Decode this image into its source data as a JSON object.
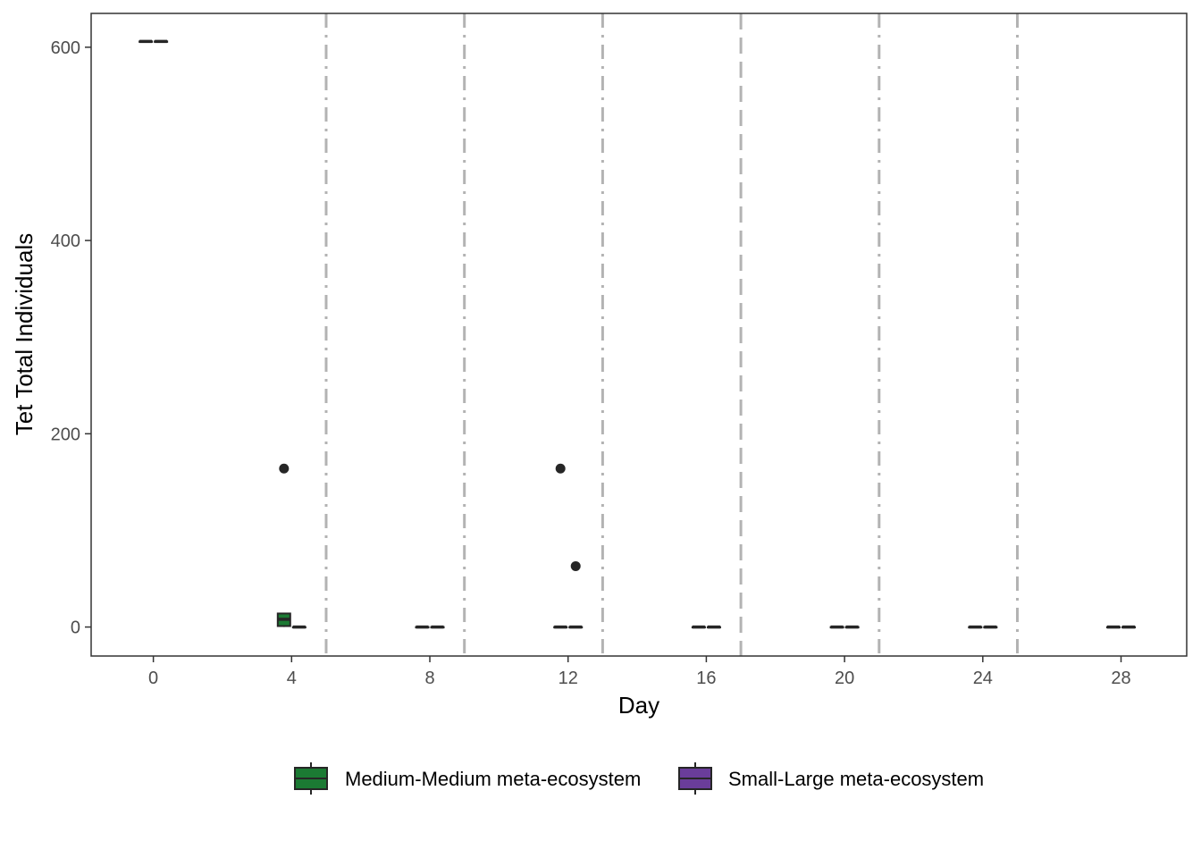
{
  "chart_data": {
    "type": "boxplot",
    "xlabel": "Day",
    "ylabel": "Tet Total Individuals",
    "xlim": [
      -1.8,
      29.9
    ],
    "ylim": [
      -30,
      635
    ],
    "x_ticks": [
      0,
      4,
      8,
      12,
      16,
      20,
      24,
      28
    ],
    "y_ticks": [
      0,
      200,
      400,
      600
    ],
    "grid": false,
    "reference_lines": [
      {
        "x": 5,
        "style": "dash-dot",
        "color": "#b3b3b3"
      },
      {
        "x": 9,
        "style": "dash-dot",
        "color": "#b3b3b3"
      },
      {
        "x": 13,
        "style": "dash-dot",
        "color": "#b3b3b3"
      },
      {
        "x": 17,
        "style": "dashed",
        "color": "#b3b3b3"
      },
      {
        "x": 21,
        "style": "dash-dot",
        "color": "#b3b3b3"
      },
      {
        "x": 25,
        "style": "dash-dot",
        "color": "#b3b3b3"
      }
    ],
    "legend": {
      "position": "bottom"
    },
    "series": [
      {
        "name": "Medium-Medium meta-ecosystem",
        "color": "#1b7a33",
        "boxes": [
          {
            "day": 0,
            "x": -0.22,
            "min": 606,
            "q1": 606,
            "median": 606,
            "q3": 606,
            "max": 606,
            "outliers": []
          },
          {
            "day": 4,
            "x": 3.78,
            "min": 0,
            "q1": 1,
            "median": 8,
            "q3": 14,
            "max": 14,
            "outliers": [
              164
            ]
          },
          {
            "day": 8,
            "x": 7.78,
            "min": 0,
            "q1": 0,
            "median": 0,
            "q3": 0,
            "max": 0,
            "outliers": []
          },
          {
            "day": 12,
            "x": 11.78,
            "min": 0,
            "q1": 0,
            "median": 0,
            "q3": 0,
            "max": 0,
            "outliers": [
              164
            ]
          },
          {
            "day": 16,
            "x": 15.78,
            "min": 0,
            "q1": 0,
            "median": 0,
            "q3": 0,
            "max": 0,
            "outliers": []
          },
          {
            "day": 20,
            "x": 19.78,
            "min": 0,
            "q1": 0,
            "median": 0,
            "q3": 0,
            "max": 0,
            "outliers": []
          },
          {
            "day": 24,
            "x": 23.78,
            "min": 0,
            "q1": 0,
            "median": 0,
            "q3": 0,
            "max": 0,
            "outliers": []
          },
          {
            "day": 28,
            "x": 27.78,
            "min": 0,
            "q1": 0,
            "median": 0,
            "q3": 0,
            "max": 0,
            "outliers": []
          }
        ]
      },
      {
        "name": "Small-Large meta-ecosystem",
        "color": "#6a3d9a",
        "boxes": [
          {
            "day": 0,
            "x": 0.22,
            "min": 606,
            "q1": 606,
            "median": 606,
            "q3": 606,
            "max": 606,
            "outliers": []
          },
          {
            "day": 4,
            "x": 4.22,
            "min": 0,
            "q1": 0,
            "median": 0,
            "q3": 0,
            "max": 0,
            "outliers": []
          },
          {
            "day": 8,
            "x": 8.22,
            "min": 0,
            "q1": 0,
            "median": 0,
            "q3": 0,
            "max": 0,
            "outliers": []
          },
          {
            "day": 12,
            "x": 12.22,
            "min": 0,
            "q1": 0,
            "median": 0,
            "q3": 0,
            "max": 0,
            "outliers": [
              63
            ]
          },
          {
            "day": 16,
            "x": 16.22,
            "min": 0,
            "q1": 0,
            "median": 0,
            "q3": 0,
            "max": 0,
            "outliers": []
          },
          {
            "day": 20,
            "x": 20.22,
            "min": 0,
            "q1": 0,
            "median": 0,
            "q3": 0,
            "max": 0,
            "outliers": []
          },
          {
            "day": 24,
            "x": 24.22,
            "min": 0,
            "q1": 0,
            "median": 0,
            "q3": 0,
            "max": 0,
            "outliers": []
          },
          {
            "day": 28,
            "x": 28.22,
            "min": 0,
            "q1": 0,
            "median": 0,
            "q3": 0,
            "max": 0,
            "outliers": []
          }
        ]
      }
    ]
  }
}
